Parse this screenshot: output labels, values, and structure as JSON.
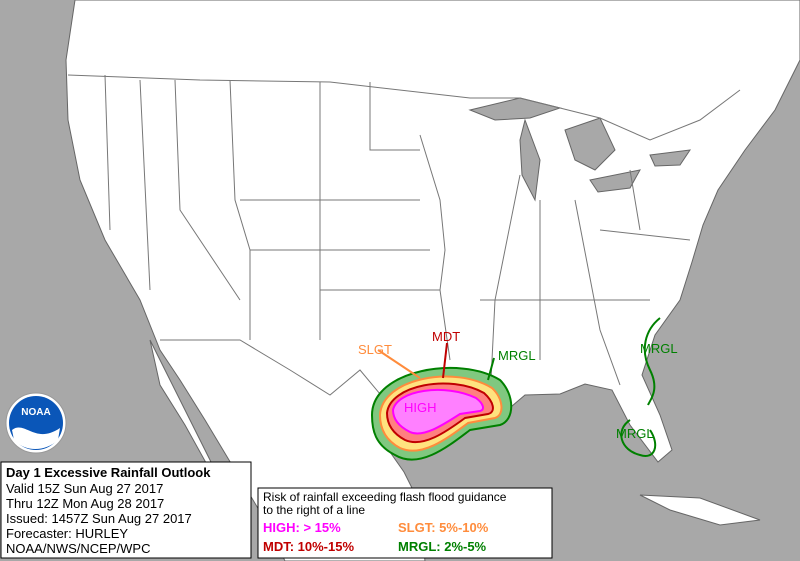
{
  "header": {
    "title": "Day 1 Excessive Rainfall Outlook",
    "valid": "Valid 15Z Sun Aug 27 2017",
    "thru": "Thru 12Z Mon Aug 28 2017",
    "issued": "Issued: 1457Z Sun Aug 27 2017",
    "forecaster": "Forecaster: HURLEY",
    "agency": "NOAA/NWS/NCEP/WPC"
  },
  "logo": "NOAA",
  "legend": {
    "line1": "Risk of rainfall exceeding flash flood guidance",
    "line2": "to the right of a line",
    "items": [
      {
        "label": "HIGH: > 15%",
        "color": "#ff00ff"
      },
      {
        "label": "SLGT: 5%-10%",
        "color": "#ff8c3c"
      },
      {
        "label": "MDT: 10%-15%",
        "color": "#c00000"
      },
      {
        "label": "MRGL: 2%-5%",
        "color": "#008000"
      }
    ]
  },
  "map_labels": [
    {
      "text": "SLGT",
      "color": "#ff8c3c"
    },
    {
      "text": "MDT",
      "color": "#c00000"
    },
    {
      "text": "MRGL",
      "color": "#008000"
    },
    {
      "text": "MRGL",
      "color": "#008000"
    },
    {
      "text": "MRGL",
      "color": "#008000"
    },
    {
      "text": "HIGH",
      "color": "#ff00ff"
    }
  ]
}
